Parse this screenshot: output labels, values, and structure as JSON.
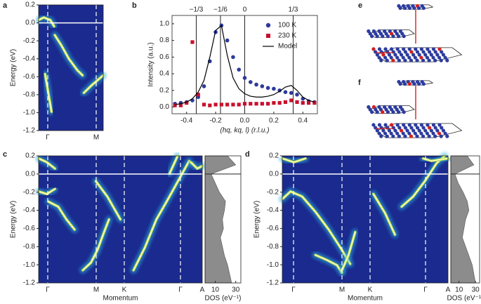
{
  "chart_data": [
    {
      "type": "spectrum",
      "label": "a",
      "ylabel": "Energy (eV)",
      "ylim": [
        -1.2,
        0.2
      ],
      "yticks": [
        0.2,
        {
          "value": 0,
          "label": "0.0"
        },
        -0.2,
        -0.4,
        -0.6,
        -0.8,
        {
          "value": -1,
          "label": "-1.0"
        },
        -1.2
      ],
      "categories": [
        "Γ",
        "M"
      ]
    },
    {
      "type": "scatter",
      "label": "b",
      "xlabel": "(hq, kq, l) (r.l.u.)",
      "ylabel": "Intensity (a.u.)",
      "xlim": [
        -0.5,
        0.5
      ],
      "ylim": [
        -0.08,
        1.1
      ],
      "xticks": [
        -0.4,
        -0.2,
        {
          "value": 0,
          "label": "0.0"
        },
        0.2,
        0.4
      ],
      "yticks": [
        {
          "value": 0,
          "label": "0.0"
        },
        0.2,
        0.4,
        0.6,
        0.8,
        {
          "value": 1,
          "label": "1.0"
        }
      ],
      "reference_lines": [
        {
          "value": -0.3333,
          "label": "−1/3"
        },
        {
          "value": -0.1667,
          "label": "−1/6"
        },
        0,
        {
          "value": 0.3333,
          "label": "1/3"
        }
      ],
      "legend": "upper right",
      "x": [
        -0.48,
        -0.44,
        -0.4,
        -0.36,
        -0.32,
        -0.28,
        -0.24,
        -0.2,
        -0.16,
        -0.12,
        -0.08,
        -0.04,
        0,
        0.04,
        0.08,
        0.12,
        0.16,
        0.2,
        0.24,
        0.28,
        0.32,
        0.36,
        0.4,
        0.44,
        0.48
      ],
      "series": [
        {
          "name": "100 K",
          "color": "#2e3a9a",
          "marker": "circle",
          "values": [
            0.04,
            0.05,
            0.06,
            0.08,
            0.12,
            0.25,
            0.55,
            0.9,
            0.98,
            0.8,
            0.6,
            0.45,
            0.35,
            0.3,
            0.27,
            0.25,
            0.23,
            0.22,
            0.2,
            0.18,
            0.17,
            0.15,
            0.1,
            0.07,
            0.06
          ]
        },
        {
          "name": "230 K",
          "color": "#c8102e",
          "marker": "square",
          "values": [
            0.02,
            0.02,
            0.05,
            0.78,
            0.15,
            0.03,
            0.02,
            0.03,
            0.03,
            0.03,
            0.03,
            0.03,
            0.04,
            0.04,
            0.04,
            0.04,
            0.04,
            0.05,
            0.05,
            0.06,
            0.08,
            0.06,
            0.05,
            0.05,
            0.05
          ]
        },
        {
          "name": "Model",
          "color": "#000000",
          "marker": "line",
          "values": [
            0.03,
            0.04,
            0.06,
            0.1,
            0.18,
            0.32,
            0.6,
            0.92,
            0.98,
            0.62,
            0.35,
            0.22,
            0.16,
            0.13,
            0.12,
            0.12,
            0.13,
            0.15,
            0.19,
            0.24,
            0.26,
            0.2,
            0.12,
            0.08,
            0.06
          ]
        }
      ]
    },
    {
      "type": "spectrum",
      "label": "c",
      "ylabel": "Energy (eV)",
      "xlabel": "Momentum",
      "ylim": [
        -1.2,
        0.2
      ],
      "yticks": [
        0.2,
        {
          "value": 0,
          "label": "0.0"
        },
        -0.2,
        -0.4,
        -0.6,
        -0.8,
        {
          "value": -1,
          "label": "-1.0"
        },
        -1.2
      ],
      "categories": [
        "Γ",
        "M",
        "K",
        "Γ",
        "A"
      ],
      "dos": {
        "xlabel": "DOS (eV⁻¹)",
        "xlim": [
          0,
          35
        ],
        "xticks": [
          10,
          30
        ],
        "energies": [
          0.2,
          0.1,
          0,
          -0.1,
          -0.2,
          -0.3,
          -0.4,
          -0.5,
          -0.6,
          -0.7,
          -0.8,
          -0.9,
          -1,
          -1.1,
          -1.2
        ],
        "values": [
          22,
          30,
          6,
          10,
          14,
          20,
          19,
          17,
          18,
          15,
          17,
          19,
          22,
          24,
          26
        ]
      }
    },
    {
      "type": "spectrum",
      "label": "d",
      "ylabel": "Energy (eV)",
      "xlabel": "Momentum",
      "ylim": [
        -1.2,
        0.2
      ],
      "yticks": [
        0.2,
        {
          "value": 0,
          "label": "0.0"
        },
        -0.2,
        -0.4,
        -0.6,
        -0.8,
        {
          "value": -1,
          "label": "-1.0"
        },
        -1.2
      ],
      "categories": [
        "Γ",
        "M",
        "K",
        "Γ",
        "A"
      ],
      "dos": {
        "xlabel": "DOS (eV⁻¹)",
        "xlim": [
          0,
          35
        ],
        "xticks": [
          10,
          30
        ],
        "energies": [
          0.2,
          0.1,
          0,
          -0.1,
          -0.2,
          -0.3,
          -0.4,
          -0.5,
          -0.6,
          -0.7,
          -0.8,
          -0.9,
          -1,
          -1.1,
          -1.2
        ],
        "values": [
          20,
          28,
          5,
          9,
          15,
          20,
          22,
          18,
          16,
          14,
          18,
          22,
          26,
          28,
          30
        ]
      }
    }
  ],
  "diagrams": [
    {
      "label": "e"
    },
    {
      "label": "f"
    }
  ]
}
